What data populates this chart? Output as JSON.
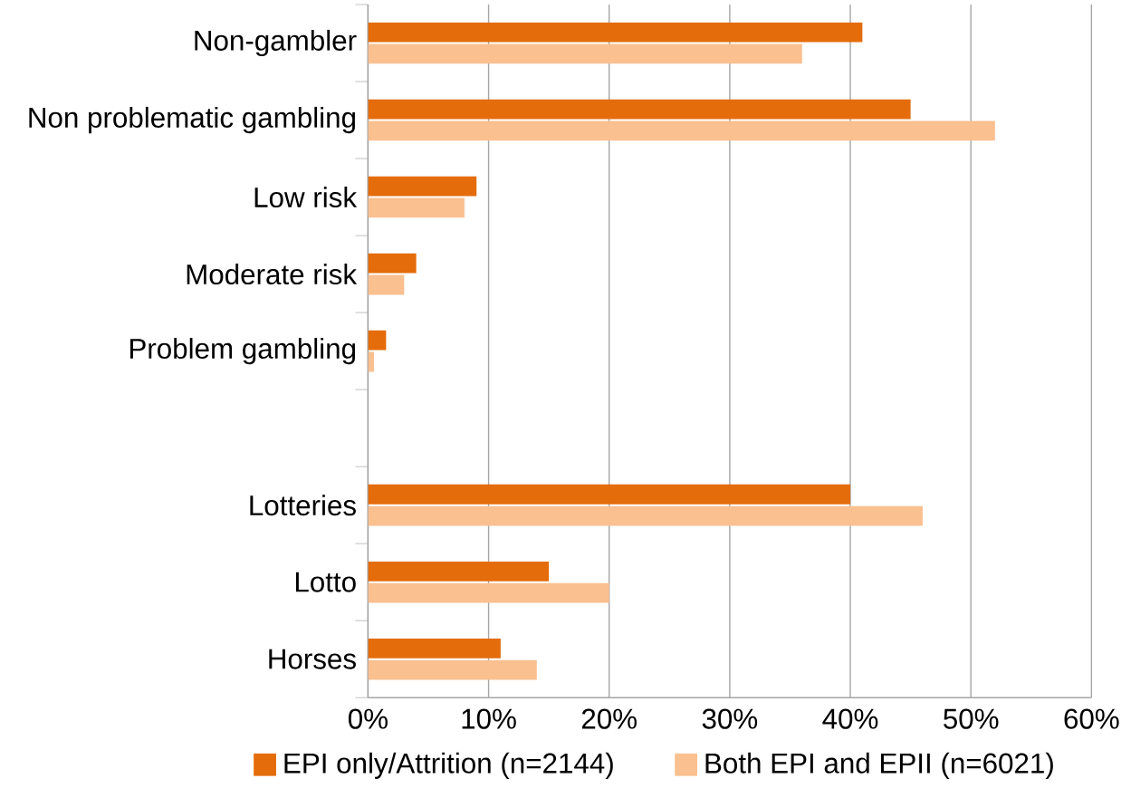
{
  "chart_data": {
    "type": "bar",
    "orientation": "horizontal",
    "categories": [
      "Non-gambler",
      "Non problematic gambling",
      "Low risk",
      "Moderate risk",
      "Problem gambling",
      null,
      "Lotteries",
      "Lotto",
      "Horses"
    ],
    "series": [
      {
        "name": "EPI only/Attrition (n=2144)",
        "color": "#e46c0a",
        "values": [
          41,
          45,
          9,
          4,
          1.5,
          null,
          40,
          15,
          11
        ]
      },
      {
        "name": "Both EPI and EPII (n=6021)",
        "color": "#fac090",
        "values": [
          36,
          52,
          8,
          3,
          0.5,
          null,
          46,
          20,
          14
        ]
      }
    ],
    "xlim": [
      0,
      60
    ],
    "xticks": [
      {
        "value": 0,
        "label": "0%"
      },
      {
        "value": 10,
        "label": "10%"
      },
      {
        "value": 20,
        "label": "20%"
      },
      {
        "value": 30,
        "label": "30%"
      },
      {
        "value": 40,
        "label": "40%"
      },
      {
        "value": 50,
        "label": "50%"
      },
      {
        "value": 60,
        "label": "60%"
      }
    ],
    "grid": "x",
    "legend": "bottom"
  }
}
